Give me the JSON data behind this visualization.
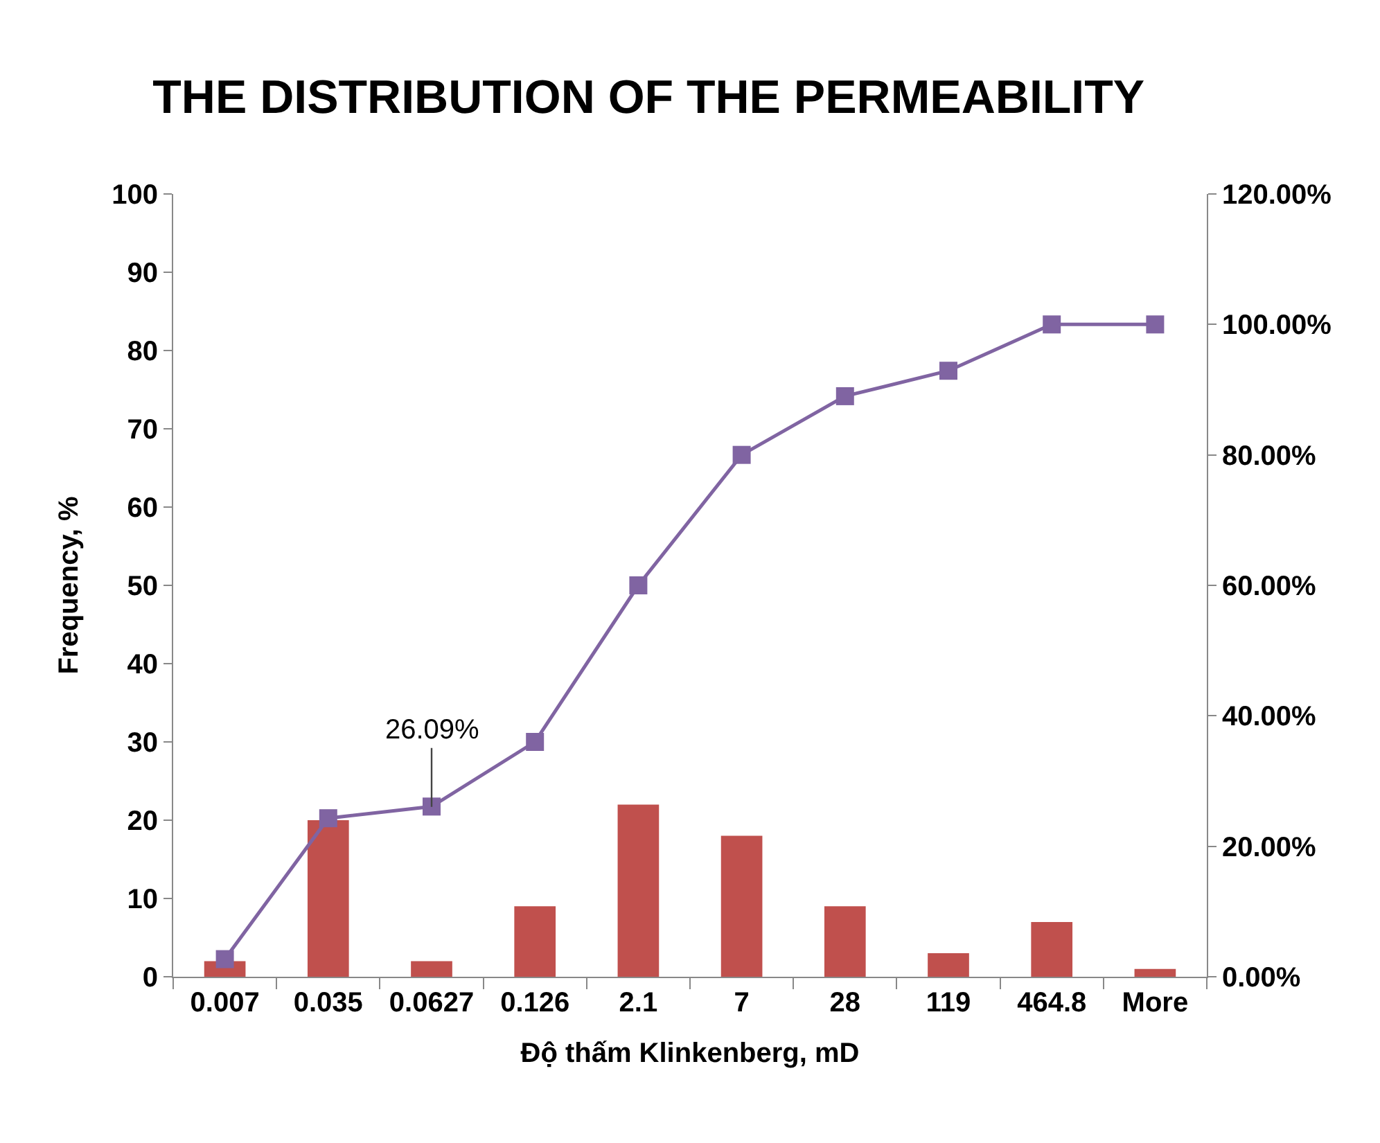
{
  "chart_data": {
    "type": "bar",
    "title": "THE DISTRIBUTION OF THE PERMEABILITY",
    "xlabel": "Độ thấm Klinkenberg, mD",
    "ylabel": "Frequency, %",
    "categories": [
      "0.007",
      "0.035",
      "0.0627",
      "0.126",
      "2.1",
      "7",
      "28",
      "119",
      "464.8",
      "More"
    ],
    "series": [
      {
        "color": "#c0504d",
        "values": [
          2,
          20,
          2,
          9,
          22,
          18,
          9,
          3,
          7,
          1
        ]
      },
      {
        "type": "line",
        "axis": "y2",
        "color": "#8064a2",
        "marker": "square",
        "line_style": "solid",
        "values": [
          2.7,
          24.3,
          26.09,
          36,
          60,
          80,
          89,
          92.9,
          100,
          100
        ]
      }
    ],
    "ylim": [
      0,
      100
    ],
    "yticks": [
      0,
      10,
      20,
      30,
      40,
      50,
      60,
      70,
      80,
      90,
      100
    ],
    "y2lim": [
      0,
      120
    ],
    "y2ticks": [
      {
        "value": 0,
        "label": "0.00%"
      },
      {
        "value": 20,
        "label": "20.00%"
      },
      {
        "value": 40,
        "label": "40.00%"
      },
      {
        "value": 60,
        "label": "60.00%"
      },
      {
        "value": 80,
        "label": "80.00%"
      },
      {
        "value": 100,
        "label": "100.00%"
      },
      {
        "value": 120,
        "label": "120.00%"
      }
    ],
    "annotations": [
      {
        "text": "26.09%",
        "x": "0.0627",
        "y": 21.7
      }
    ],
    "grid": false,
    "legend": false
  }
}
